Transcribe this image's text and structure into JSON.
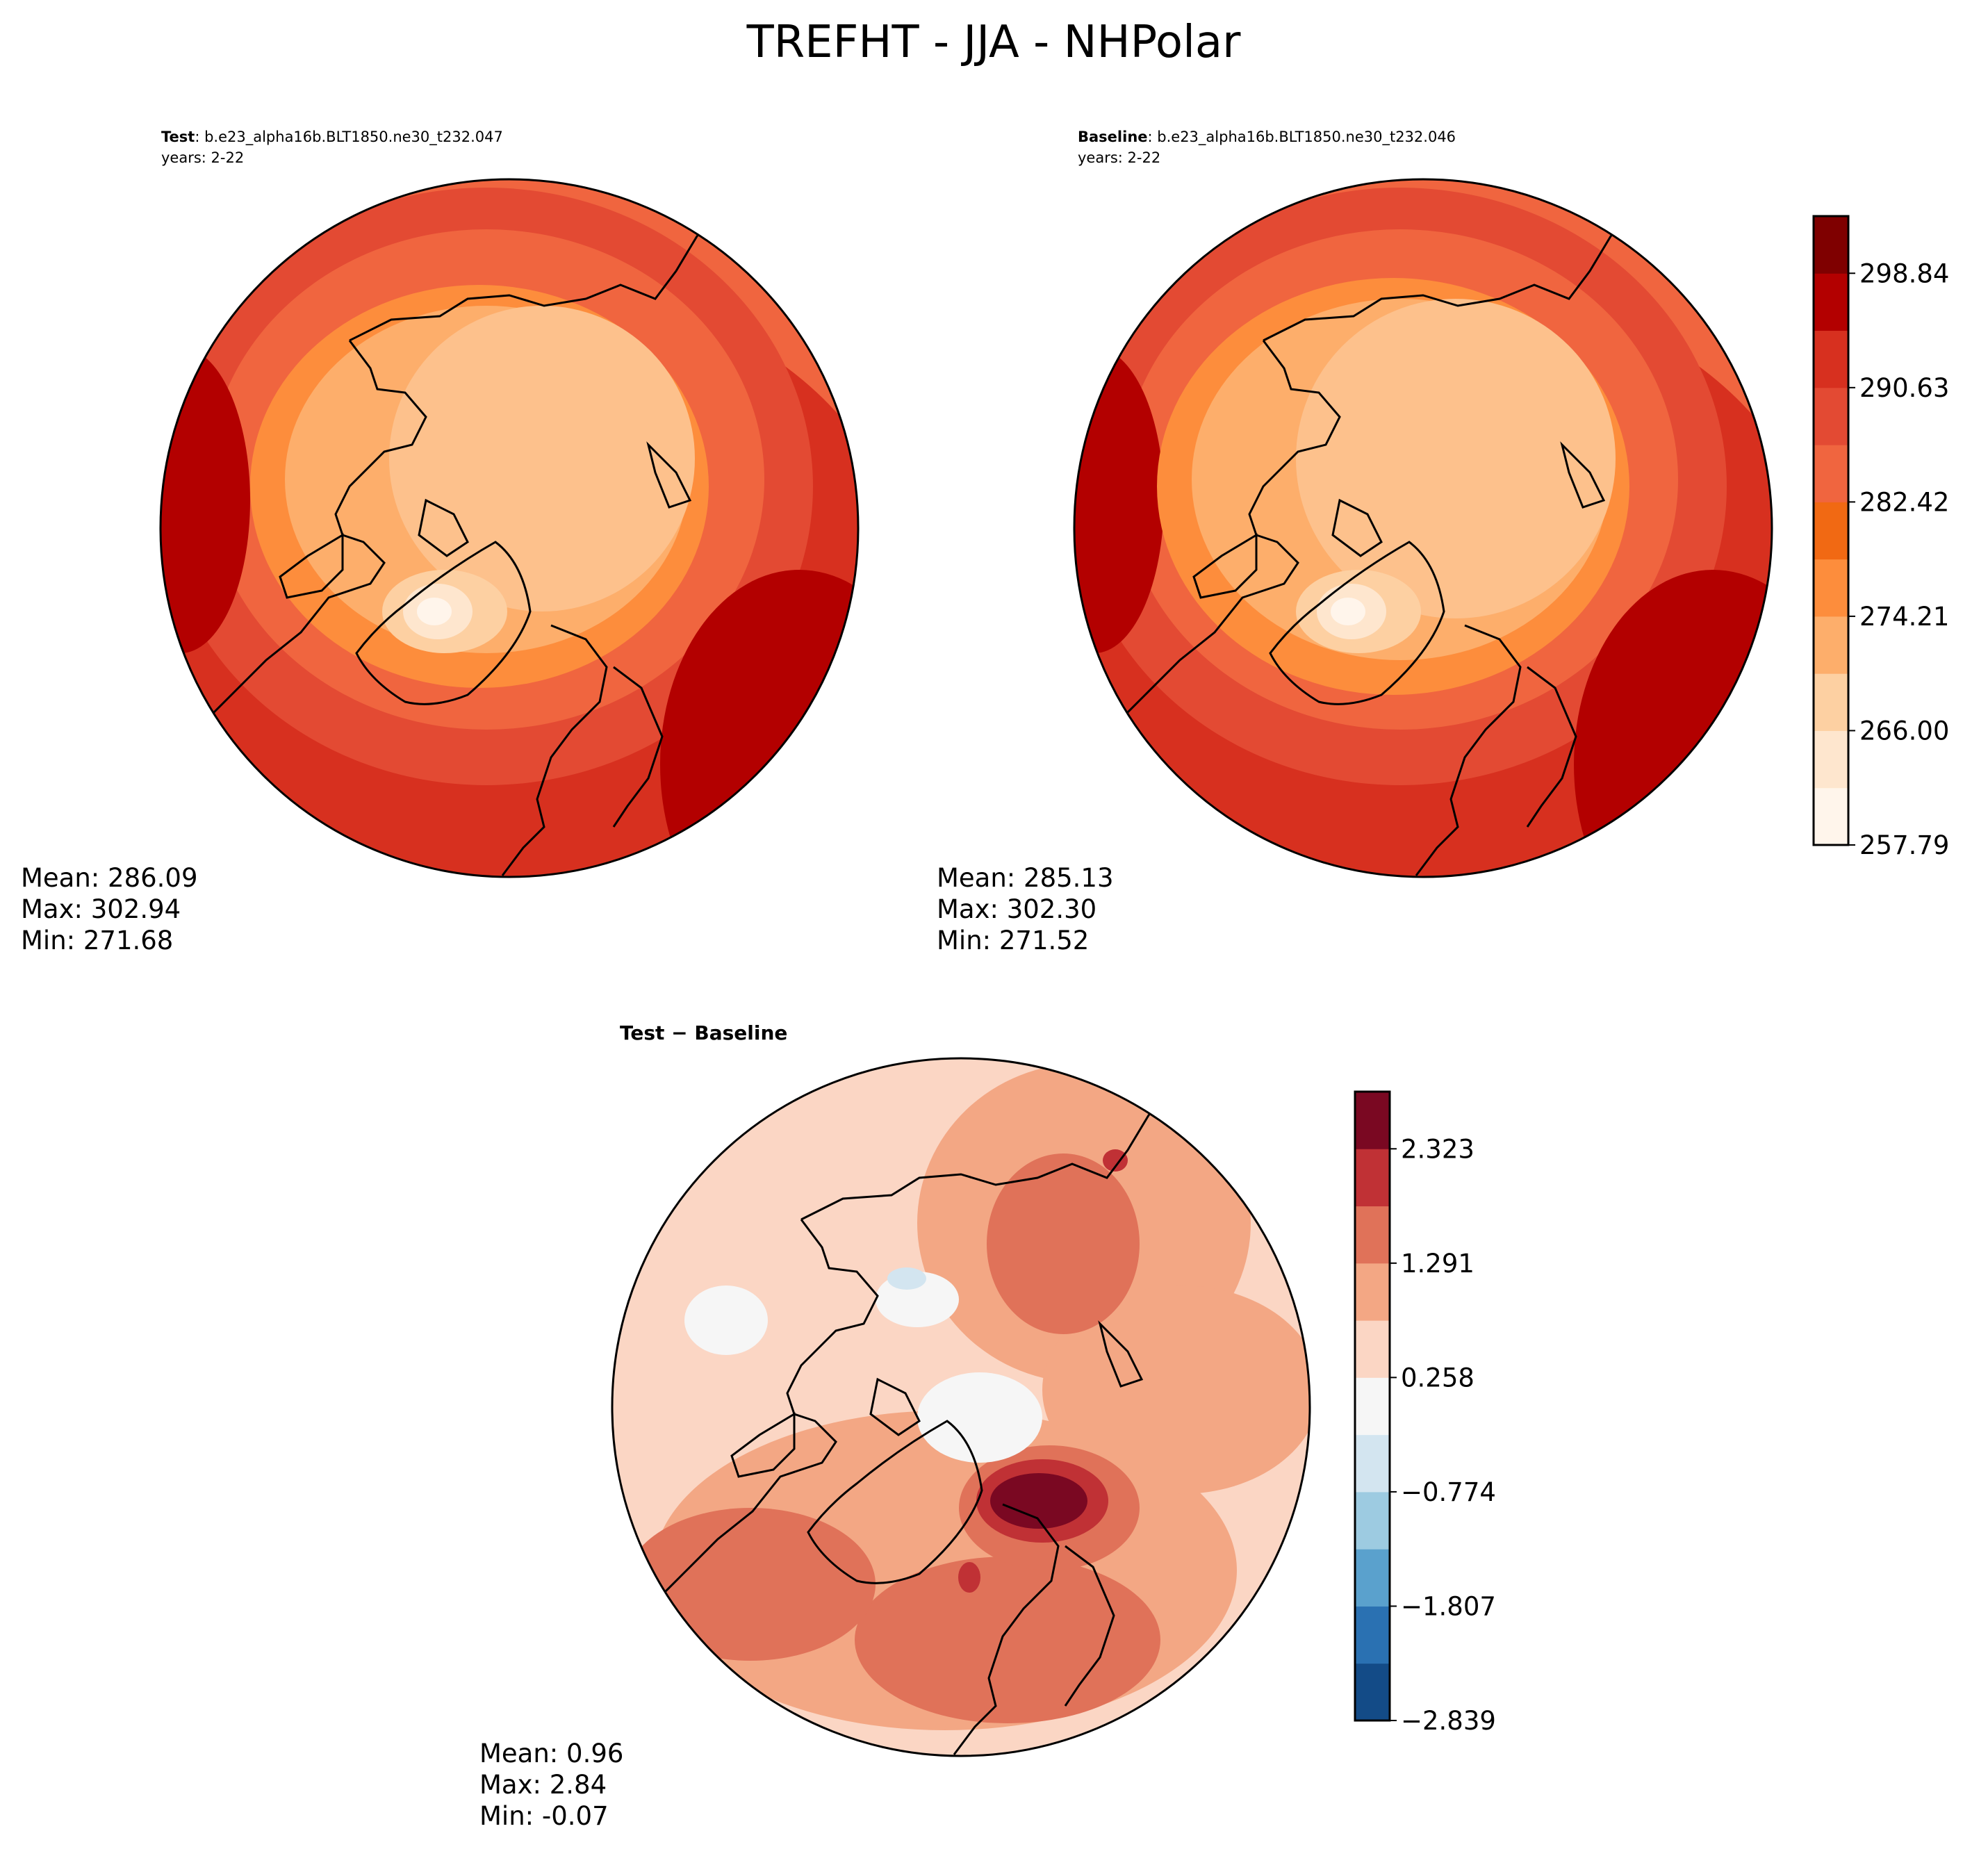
{
  "title": "TREFHT - JJA - NHPolar",
  "test_panel": {
    "label_bold": "Test",
    "label_rest": ": b.e23_alpha16b.BLT1850.ne30_t232.047",
    "years": "years: 2-22",
    "stats": {
      "mean": "Mean: 286.09",
      "max": "Max: 302.94",
      "min": "Min: 271.68"
    }
  },
  "baseline_panel": {
    "label_bold": "Baseline",
    "label_rest": ": b.e23_alpha16b.BLT1850.ne30_t232.046",
    "years": "years: 2-22",
    "stats": {
      "mean": "Mean: 285.13",
      "max": "Max: 302.30",
      "min": "Min: 271.52"
    }
  },
  "diff_panel": {
    "label": "Test − Baseline",
    "stats": {
      "mean": "Mean:  0.96",
      "max": "Max:  2.84",
      "min": "Min: -0.07"
    }
  },
  "colorbar_main": {
    "ticks": [
      "298.84",
      "290.63",
      "282.42",
      "274.21",
      "266.00",
      "257.79"
    ],
    "colors": [
      "#fff5eb",
      "#fee6ce",
      "#fdd0a2",
      "#fdae6b",
      "#fd8d3c",
      "#f16913",
      "#f0653f",
      "#e34a33",
      "#d7301f",
      "#b30000",
      "#7f0000"
    ]
  },
  "colorbar_diff": {
    "ticks": [
      "2.323",
      "1.291",
      "0.258",
      "−0.774",
      "−1.807",
      "−2.839"
    ],
    "colors": [
      "#134b87",
      "#2a71b2",
      "#5aa1cd",
      "#9dcbe1",
      "#d3e5f0",
      "#f6f6f6",
      "#fbd6c4",
      "#f3a784",
      "#e07259",
      "#c03135",
      "#7a0822"
    ]
  }
}
